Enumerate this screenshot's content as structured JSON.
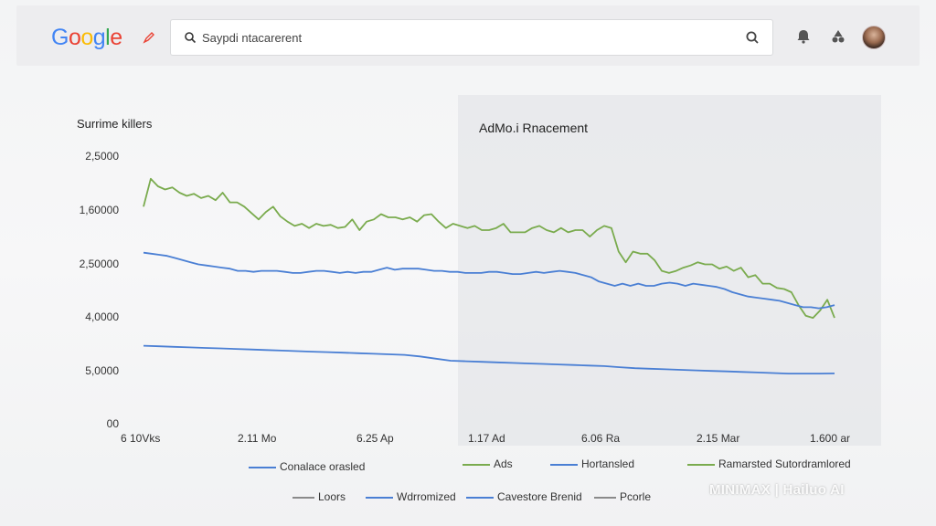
{
  "header": {
    "logo_letters": [
      "G",
      "o",
      "o",
      "g",
      "l",
      "e"
    ],
    "logo_colors": [
      "#4285f4",
      "#ea4335",
      "#fbbc05",
      "#4285f4",
      "#34a853",
      "#ea4335"
    ],
    "search": {
      "value": "Saypdi ntacarerent",
      "lead_icon": "search-icon",
      "trail_icon": "search-icon"
    },
    "icons": [
      "notifications-icon",
      "apps-icon"
    ],
    "avatar": "user-avatar"
  },
  "chart_title": "Surrime killers",
  "panel_title": "AdMo.i Rnacement",
  "chart_data": {
    "type": "line",
    "title": "Surrime killers",
    "y_tick_labels": [
      "2,5000",
      "1,60000",
      "2,50000",
      "4,0000",
      "5,0000",
      "00"
    ],
    "x_tick_labels": [
      "6 10Vks",
      "2.11 Mo",
      "6.25 Ap",
      "1.17 Ad",
      "6.06 Ra",
      "2.15 Mar",
      "1.600 ar"
    ],
    "series": [
      {
        "name": "Ads",
        "color": "#7aab4e",
        "values": [
          2.02,
          2.28,
          2.21,
          2.18,
          2.2,
          2.15,
          2.12,
          2.14,
          2.1,
          2.12,
          2.08,
          2.15,
          2.06,
          2.06,
          2.02,
          1.96,
          1.9,
          1.97,
          2.02,
          1.93,
          1.88,
          1.84,
          1.86,
          1.82,
          1.86,
          1.84,
          1.85,
          1.82,
          1.83,
          1.9,
          1.8,
          1.88,
          1.9,
          1.95,
          1.92,
          1.92,
          1.9,
          1.92,
          1.88,
          1.94,
          1.95,
          1.88,
          1.82,
          1.86,
          1.84,
          1.82,
          1.84,
          1.8,
          1.8,
          1.82,
          1.86,
          1.78,
          1.78,
          1.78,
          1.82,
          1.84,
          1.8,
          1.78,
          1.82,
          1.78,
          1.8,
          1.8,
          1.74,
          1.8,
          1.84,
          1.82,
          1.6,
          1.5,
          1.6,
          1.58,
          1.58,
          1.52,
          1.42,
          1.4,
          1.42,
          1.45,
          1.47,
          1.5,
          1.48,
          1.48,
          1.44,
          1.46,
          1.42,
          1.45,
          1.36,
          1.38,
          1.3,
          1.3,
          1.26,
          1.25,
          1.22,
          1.1,
          1.0,
          0.98,
          1.05,
          1.15,
          0.98
        ]
      },
      {
        "name": "Hortansled",
        "color": "#4a7fd4",
        "values": [
          1.59,
          1.58,
          1.57,
          1.56,
          1.54,
          1.52,
          1.5,
          1.48,
          1.47,
          1.46,
          1.45,
          1.44,
          1.42,
          1.42,
          1.41,
          1.42,
          1.42,
          1.42,
          1.41,
          1.4,
          1.4,
          1.41,
          1.42,
          1.42,
          1.41,
          1.4,
          1.41,
          1.4,
          1.41,
          1.41,
          1.43,
          1.45,
          1.43,
          1.44,
          1.44,
          1.44,
          1.43,
          1.42,
          1.42,
          1.41,
          1.41,
          1.4,
          1.4,
          1.4,
          1.41,
          1.41,
          1.4,
          1.39,
          1.39,
          1.4,
          1.41,
          1.4,
          1.41,
          1.42,
          1.41,
          1.4,
          1.38,
          1.36,
          1.32,
          1.3,
          1.28,
          1.3,
          1.28,
          1.3,
          1.28,
          1.28,
          1.3,
          1.31,
          1.3,
          1.28,
          1.3,
          1.29,
          1.28,
          1.27,
          1.25,
          1.22,
          1.2,
          1.18,
          1.17,
          1.16,
          1.15,
          1.14,
          1.12,
          1.1,
          1.08,
          1.08,
          1.07,
          1.08,
          1.1
        ]
      },
      {
        "name": "Conalace orasled",
        "color": "#4a7fd4",
        "values": [
          0.72,
          0.715,
          0.71,
          0.705,
          0.7,
          0.695,
          0.69,
          0.685,
          0.68,
          0.675,
          0.67,
          0.665,
          0.66,
          0.655,
          0.65,
          0.645,
          0.64,
          0.635,
          0.62,
          0.6,
          0.58,
          0.575,
          0.57,
          0.565,
          0.56,
          0.555,
          0.55,
          0.545,
          0.54,
          0.535,
          0.53,
          0.52,
          0.51,
          0.505,
          0.5,
          0.495,
          0.49,
          0.485,
          0.48,
          0.475,
          0.47,
          0.465,
          0.46,
          0.46,
          0.46,
          0.462
        ]
      }
    ],
    "y_domain": [
      0,
      2.5
    ],
    "grid": false,
    "legend_placement": "bottom"
  },
  "legend_row1": [
    {
      "label": "Conalace orasled",
      "color": "#4a7fd4",
      "style": "solid"
    },
    {
      "label": "Ads",
      "color": "#7aab4e",
      "style": "solid"
    },
    {
      "label": "Hortansled",
      "color": "#4a7fd4",
      "style": "solid"
    },
    {
      "label": "Ramarsted Sutordramlored",
      "color": "#7aab4e",
      "style": "solid"
    }
  ],
  "legend_row2": [
    {
      "label": "Loors",
      "color": "#8a8a8a",
      "style": "solid"
    },
    {
      "label": "Wdrromized",
      "color": "#4a7fd4",
      "style": "solid"
    },
    {
      "label": "Cavestore Brenid",
      "color": "#4a7fd4",
      "style": "solid"
    },
    {
      "label": "Pcorle",
      "color": "#8a8a8a",
      "style": "solid"
    }
  ],
  "watermark": "MINIMAX | Hailuo AI"
}
